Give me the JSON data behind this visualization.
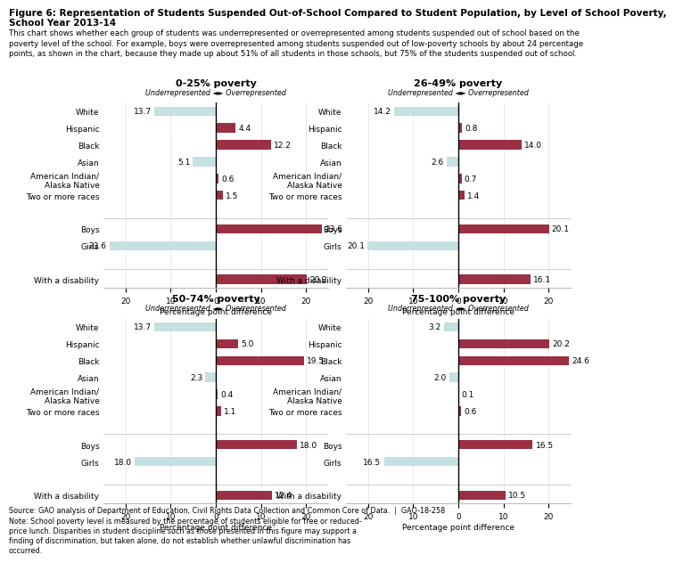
{
  "title_line1": "Figure 6: Representation of Students Suspended Out-of-School Compared to Student Population, by Level of School Poverty,",
  "title_line2": "School Year 2013-14",
  "description": "This chart shows whether each group of students was underrepresented or overrepresented among students suspended out of school based on the\npoverty level of the school. For example, boys were overrepresented among students suspended out of low-poverty schools by about 24 percentage\npoints, as shown in the chart, because they made up about 51% of all students in those schools, but 75% of the students suspended out of school.",
  "source": "Source: GAO analysis of Department of Education, Civil Rights Data Collection and Common Core of Data.  |  GAO-18-258",
  "note": "Note: School poverty level is measured by the percentage of students eligible for free or reduced-\nprice lunch. Disparities in student discipline such as those presented in this figure may support a\nfinding of discrimination, but taken alone, do not establish whether unlawful discrimination has\noccurred.",
  "panels": [
    {
      "title": "0-25% poverty",
      "categories": [
        "White",
        "Hispanic",
        "Black",
        "Asian",
        "American Indian/\nAlaska Native",
        "Two or more races",
        "",
        "Boys",
        "Girls",
        "",
        "With a disability"
      ],
      "values": [
        -13.7,
        4.4,
        12.2,
        -5.1,
        0.6,
        1.5,
        null,
        23.6,
        -23.6,
        null,
        20.2
      ],
      "labels": [
        "13.7",
        "4.4",
        "12.2",
        "5.1",
        "0.6",
        "1.5",
        "",
        "23.6",
        "23.6",
        "",
        "20.2"
      ]
    },
    {
      "title": "26-49% poverty",
      "categories": [
        "White",
        "Hispanic",
        "Black",
        "Asian",
        "American Indian/\nAlaska Native",
        "Two or more races",
        "",
        "Boys",
        "Girls",
        "",
        "With a disability"
      ],
      "values": [
        -14.2,
        0.8,
        14.0,
        -2.6,
        0.7,
        1.4,
        null,
        20.1,
        -20.1,
        null,
        16.1
      ],
      "labels": [
        "14.2",
        "0.8",
        "14.0",
        "2.6",
        "0.7",
        "1.4",
        "",
        "20.1",
        "20.1",
        "",
        "16.1"
      ]
    },
    {
      "title": "50-74% poverty",
      "categories": [
        "White",
        "Hispanic",
        "Black",
        "Asian",
        "American Indian/\nAlaska Native",
        "Two or more races",
        "",
        "Boys",
        "Girls",
        "",
        "With a disability"
      ],
      "values": [
        -13.7,
        5.0,
        19.5,
        -2.3,
        0.4,
        1.1,
        null,
        18.0,
        -18.0,
        null,
        12.4
      ],
      "labels": [
        "13.7",
        "5.0",
        "19.5",
        "2.3",
        "0.4",
        "1.1",
        "",
        "18.0",
        "18.0",
        "",
        "12.4"
      ]
    },
    {
      "title": "75-100% poverty",
      "categories": [
        "White",
        "Hispanic",
        "Black",
        "Asian",
        "American Indian/\nAlaska Native",
        "Two or more races",
        "",
        "Boys",
        "Girls",
        "",
        "With a disability"
      ],
      "values": [
        -3.2,
        20.2,
        24.6,
        -2.0,
        0.1,
        0.6,
        null,
        16.5,
        -16.5,
        null,
        10.5
      ],
      "labels": [
        "3.2",
        "20.2",
        "24.6",
        "2.0",
        "0.1",
        "0.6",
        "",
        "16.5",
        "16.5",
        "",
        "10.5"
      ]
    }
  ],
  "color_negative": "#c5e0e0",
  "color_positive": "#9b3045",
  "xlim": [
    -25,
    25
  ],
  "xticks": [
    -20,
    -10,
    0,
    10,
    20
  ],
  "xlabel": "Percentage point difference",
  "underrep_label": "Underrepresented ◄► Overrepresented",
  "background_color": "#ffffff",
  "title_fontsize": 7.5,
  "label_fontsize": 6.5,
  "tick_fontsize": 6.5,
  "subtitle_fontsize": 6.2,
  "panel_title_fontsize": 8.0,
  "value_label_fontsize": 6.5
}
